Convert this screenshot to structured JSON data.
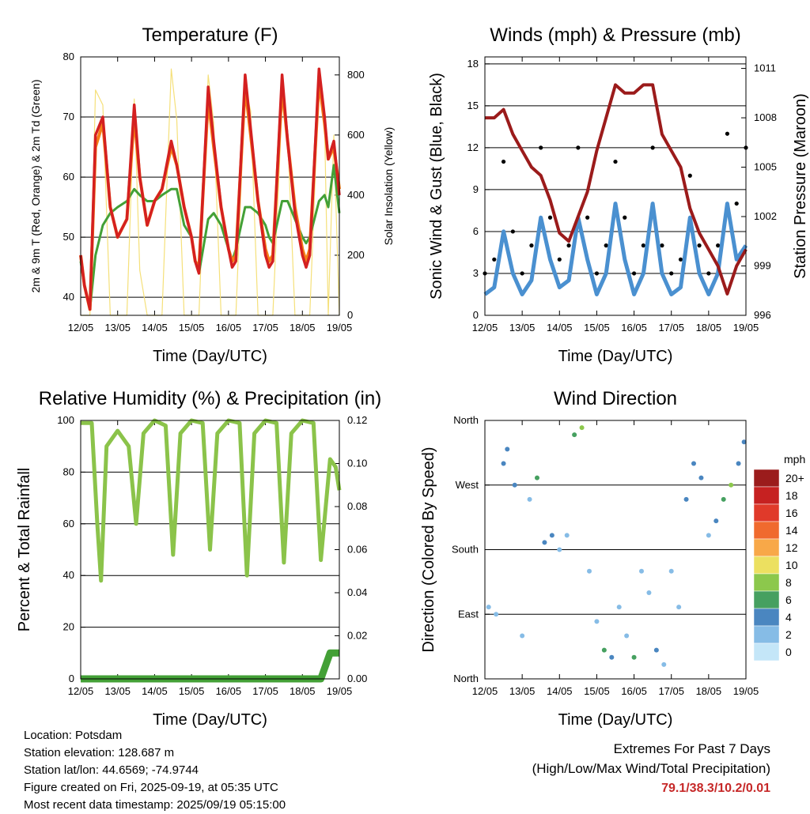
{
  "days": [
    "12/05",
    "13/05",
    "14/05",
    "15/05",
    "16/05",
    "17/05",
    "18/05",
    "19/05"
  ],
  "colors": {
    "t2": "#d42020",
    "t9": "#f57f17",
    "td": "#43a036",
    "solar": "#f5e07a",
    "wind": "#4a90d0",
    "gust": "#000000",
    "pressure": "#9b1b1b",
    "rh": "#8bc34a",
    "precip": "#43a036"
  },
  "temp": {
    "title": "Temperature (F)",
    "ylabel": "2m & 9m T (Red, Orange) & 2m Td (Green)",
    "y2label": "Solar Insolation (Yellow)",
    "xlabel": "Time (Day/UTC)",
    "yticks": [
      "40",
      "50",
      "60",
      "70",
      "80"
    ],
    "y2ticks": [
      "0",
      "200",
      "400",
      "600",
      "800"
    ]
  },
  "wind": {
    "title": "Winds (mph) & Pressure (mb)",
    "ylabel": "Sonic Wind & Gust (Blue, Black)",
    "y2label": "Station Pressure (Maroon)",
    "xlabel": "Time (Day/UTC)",
    "yticks": [
      "0",
      "3",
      "6",
      "9",
      "12",
      "15",
      "18"
    ],
    "y2ticks": [
      "996",
      "999",
      "1002",
      "1005",
      "1008",
      "1011"
    ]
  },
  "rh": {
    "title": "Relative Humidity (%) & Precipitation (in)",
    "ylabel": "Percent & Total Rainfall",
    "xlabel": "Time (Day/UTC)",
    "yticks": [
      "0",
      "20",
      "40",
      "60",
      "80",
      "100"
    ],
    "y2ticks": [
      "0.00",
      "0.02",
      "0.04",
      "0.06",
      "0.08",
      "0.10",
      "0.12"
    ]
  },
  "dir": {
    "title": "Wind Direction",
    "ylabel": "Direction (Colored By Speed)",
    "xlabel": "Time (Day/UTC)",
    "yticks": [
      "North",
      "East",
      "South",
      "West",
      "North"
    ],
    "legend_title": "mph",
    "legend_labels": [
      "20+",
      "18",
      "16",
      "14",
      "12",
      "10",
      "8",
      "6",
      "4",
      "2",
      "0"
    ],
    "legend_colors": [
      "#9b1c1c",
      "#c62121",
      "#e03a2a",
      "#f06a2e",
      "#f8a848",
      "#ece060",
      "#8cc84c",
      "#46a060",
      "#4a86c0",
      "#86bce6",
      "#c4e6f8"
    ]
  },
  "footer": {
    "location": "Location: Potsdam",
    "elevation": "Station elevation: 128.687 m",
    "latlon": "Station lat/lon: 44.6569; -74.9744",
    "created": "Figure created on Fri, 2025-09-19, at 05:35 UTC",
    "recent": "Most recent data timestamp: 2025/09/19 05:15:00"
  },
  "extremes": {
    "title": "Extremes For Past 7 Days",
    "subtitle": "(High/Low/Max Wind/Total Precipitation)",
    "values": "79.1/38.3/10.2/0.01"
  },
  "chart_data": [
    {
      "type": "line",
      "title": "Temperature (F)",
      "xlabel": "Time (Day/UTC)",
      "ylabel": "2m & 9m T (Red, Orange) & 2m Td (Green)",
      "y2label": "Solar Insolation (Yellow)",
      "x_day": [
        0,
        0.1,
        0.25,
        0.4,
        0.6,
        0.8,
        1.0,
        1.25,
        1.45,
        1.6,
        1.8,
        2.0,
        2.2,
        2.45,
        2.6,
        2.8,
        3.0,
        3.1,
        3.2,
        3.45,
        3.6,
        3.8,
        4.0,
        4.1,
        4.2,
        4.45,
        4.6,
        4.8,
        5.0,
        5.1,
        5.2,
        5.45,
        5.6,
        5.8,
        6.0,
        6.1,
        6.2,
        6.45,
        6.6,
        6.7,
        6.85,
        7.0
      ],
      "ylim": [
        37,
        80
      ],
      "y2lim": [
        0,
        860
      ],
      "series": [
        {
          "values": [
            47,
            42,
            38,
            67,
            70,
            55,
            50,
            53,
            72,
            60,
            52,
            56,
            58,
            66,
            62,
            55,
            50,
            46,
            44,
            75,
            66,
            55,
            48,
            45,
            46,
            77,
            68,
            56,
            47,
            45,
            46,
            77,
            66,
            54,
            47,
            45,
            47,
            78,
            70,
            63,
            66,
            57
          ]
        },
        {
          "values": [
            47,
            42,
            38,
            65,
            69,
            55,
            50,
            53,
            70,
            60,
            52,
            56,
            58,
            65,
            62,
            55,
            50,
            46,
            45,
            73,
            65,
            55,
            48,
            46,
            47,
            75,
            67,
            56,
            48,
            46,
            47,
            75,
            66,
            55,
            48,
            46,
            48,
            76,
            69,
            63,
            65,
            58
          ]
        },
        {
          "values": [
            46,
            42,
            38,
            47,
            52,
            54,
            55,
            56,
            58,
            57,
            56,
            56,
            57,
            58,
            58,
            52,
            50,
            46,
            44,
            53,
            54,
            52,
            48,
            46,
            48,
            55,
            55,
            54,
            52,
            50,
            49,
            56,
            56,
            53,
            50,
            49,
            50,
            56,
            57,
            55,
            62,
            54
          ]
        },
        {
          "y2": true,
          "values": [
            0,
            0,
            0,
            750,
            700,
            0,
            0,
            0,
            720,
            150,
            0,
            0,
            0,
            820,
            650,
            0,
            0,
            0,
            0,
            800,
            640,
            0,
            0,
            0,
            0,
            760,
            680,
            0,
            0,
            0,
            0,
            700,
            600,
            0,
            0,
            0,
            0,
            780,
            640,
            0,
            600,
            0
          ]
        }
      ]
    },
    {
      "type": "line",
      "title": "Winds (mph) & Pressure (mb)",
      "xlabel": "Time (Day/UTC)",
      "ylabel": "Sonic Wind & Gust (Blue, Black)",
      "y2label": "Station Pressure (Maroon)",
      "x_day": [
        0,
        0.25,
        0.5,
        0.75,
        1,
        1.25,
        1.5,
        1.75,
        2,
        2.25,
        2.5,
        2.75,
        3,
        3.25,
        3.5,
        3.75,
        4,
        4.25,
        4.5,
        4.75,
        5,
        5.25,
        5.5,
        5.75,
        6,
        6.25,
        6.5,
        6.75,
        7
      ],
      "ylim": [
        0,
        18.5
      ],
      "y2lim": [
        996,
        1011.7
      ],
      "series": [
        {
          "values": [
            1.5,
            2,
            6,
            3,
            1.5,
            2.5,
            7,
            4,
            2,
            2.5,
            7,
            4,
            1.5,
            3,
            8,
            4,
            1.5,
            3,
            8,
            3,
            1.5,
            2,
            7,
            3,
            1.5,
            3,
            8,
            4,
            5
          ]
        },
        {
          "values": [
            3,
            4,
            11,
            6,
            3,
            5,
            12,
            7,
            4,
            5,
            12,
            7,
            3,
            5,
            11,
            7,
            3,
            5,
            12,
            5,
            3,
            4,
            10,
            5,
            3,
            5,
            13,
            8,
            12
          ]
        },
        {
          "y2": true,
          "values": [
            1008,
            1008,
            1008.5,
            1007,
            1006,
            1005,
            1004.5,
            1003,
            1001,
            1000.5,
            1002,
            1003.5,
            1006,
            1008,
            1010,
            1009.5,
            1009.5,
            1010,
            1010,
            1007,
            1006,
            1005,
            1002.5,
            1001,
            1000,
            999,
            997.3,
            999,
            1000
          ]
        }
      ]
    },
    {
      "type": "line",
      "title": "Relative Humidity (%) & Precipitation (in)",
      "xlabel": "Time (Day/UTC)",
      "ylabel": "Percent & Total Rainfall",
      "x_day": [
        0,
        0.3,
        0.45,
        0.55,
        0.7,
        1.0,
        1.3,
        1.5,
        1.7,
        2.0,
        2.3,
        2.5,
        2.7,
        3.0,
        3.3,
        3.5,
        3.7,
        4.0,
        4.3,
        4.5,
        4.7,
        5.0,
        5.3,
        5.5,
        5.7,
        6.0,
        6.3,
        6.5,
        6.75,
        6.9,
        7.0
      ],
      "ylim": [
        0,
        100
      ],
      "y2lim": [
        0,
        0.12
      ],
      "series": [
        {
          "values": [
            99,
            99,
            60,
            38,
            90,
            96,
            90,
            60,
            95,
            100,
            98,
            48,
            95,
            100,
            99,
            50,
            95,
            100,
            99,
            40,
            95,
            100,
            99,
            45,
            95,
            100,
            99,
            46,
            85,
            82,
            73
          ]
        },
        {
          "y2": true,
          "values": [
            0,
            0,
            0,
            0,
            0,
            0,
            0,
            0,
            0,
            0,
            0,
            0,
            0,
            0,
            0,
            0,
            0,
            0,
            0,
            0,
            0,
            0,
            0,
            0,
            0,
            0,
            0,
            0,
            0.012,
            0.012,
            0.012
          ]
        }
      ]
    },
    {
      "type": "scatter",
      "title": "Wind Direction",
      "xlabel": "Time (Day/UTC)",
      "ylabel": "Direction (Colored By Speed)",
      "yticks": [
        "North",
        "East",
        "South",
        "West",
        "North"
      ],
      "ylim": [
        0,
        360
      ],
      "colorbar": {
        "title": "mph",
        "labels": [
          "20+",
          "18",
          "16",
          "14",
          "12",
          "10",
          "8",
          "6",
          "4",
          "2",
          "0"
        ]
      },
      "x_day": [
        0.1,
        0.3,
        0.5,
        0.6,
        0.8,
        1.0,
        1.2,
        1.4,
        1.6,
        1.8,
        2.0,
        2.2,
        2.4,
        2.6,
        2.8,
        3.0,
        3.2,
        3.4,
        3.6,
        3.8,
        4.0,
        4.2,
        4.4,
        4.6,
        4.8,
        5.0,
        5.2,
        5.4,
        5.6,
        5.8,
        6.0,
        6.2,
        6.4,
        6.6,
        6.8,
        6.95
      ],
      "y_deg": [
        100,
        90,
        300,
        320,
        270,
        60,
        250,
        280,
        190,
        200,
        180,
        200,
        340,
        350,
        150,
        80,
        40,
        30,
        100,
        60,
        30,
        150,
        120,
        40,
        20,
        150,
        100,
        250,
        300,
        280,
        200,
        220,
        250,
        270,
        300,
        330
      ],
      "speeds": [
        1,
        2,
        3,
        4,
        3,
        1,
        2,
        5,
        3,
        4,
        2,
        1,
        6,
        7,
        1,
        2,
        5,
        4,
        1,
        2,
        6,
        1,
        2,
        3,
        1,
        1,
        2,
        3,
        4,
        3,
        2,
        4,
        5,
        7,
        4,
        3
      ]
    }
  ]
}
